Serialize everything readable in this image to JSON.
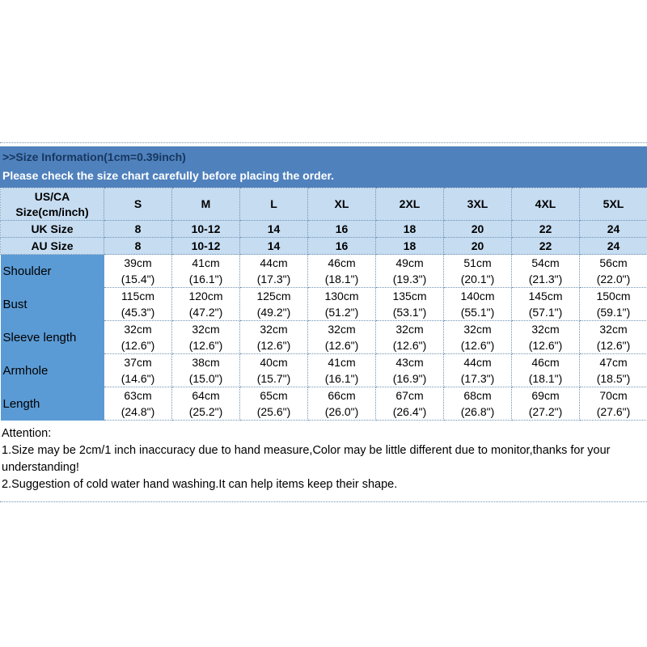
{
  "banner": {
    "title": ">>Size Information(1cm=0.39inch)",
    "subtitle": "Please check the size chart carefully before placing the order."
  },
  "table": {
    "corner": {
      "line1": "US/CA",
      "line2": "Size(cm/inch)"
    },
    "sizes": [
      "S",
      "M",
      "L",
      "XL",
      "2XL",
      "3XL",
      "4XL",
      "5XL"
    ],
    "size_rows": [
      {
        "label": "UK Size",
        "values": [
          "8",
          "10-12",
          "14",
          "16",
          "18",
          "20",
          "22",
          "24"
        ]
      },
      {
        "label": "AU Size",
        "values": [
          "8",
          "10-12",
          "14",
          "16",
          "18",
          "20",
          "22",
          "24"
        ]
      }
    ],
    "measurement_rows": [
      {
        "label": "Shoulder",
        "values": [
          {
            "cm": "39cm",
            "inch": "(15.4\")"
          },
          {
            "cm": "41cm",
            "inch": "(16.1\")"
          },
          {
            "cm": "44cm",
            "inch": "(17.3\")"
          },
          {
            "cm": "46cm",
            "inch": "(18.1\")"
          },
          {
            "cm": "49cm",
            "inch": "(19.3\")"
          },
          {
            "cm": "51cm",
            "inch": "(20.1\")"
          },
          {
            "cm": "54cm",
            "inch": "(21.3\")"
          },
          {
            "cm": "56cm",
            "inch": "(22.0\")"
          }
        ]
      },
      {
        "label": "Bust",
        "values": [
          {
            "cm": "115cm",
            "inch": "(45.3\")"
          },
          {
            "cm": "120cm",
            "inch": "(47.2\")"
          },
          {
            "cm": "125cm",
            "inch": "(49.2\")"
          },
          {
            "cm": "130cm",
            "inch": "(51.2\")"
          },
          {
            "cm": "135cm",
            "inch": "(53.1\")"
          },
          {
            "cm": "140cm",
            "inch": "(55.1\")"
          },
          {
            "cm": "145cm",
            "inch": "(57.1\")"
          },
          {
            "cm": "150cm",
            "inch": "(59.1\")"
          }
        ]
      },
      {
        "label": "Sleeve length",
        "values": [
          {
            "cm": "32cm",
            "inch": "(12.6\")"
          },
          {
            "cm": "32cm",
            "inch": "(12.6\")"
          },
          {
            "cm": "32cm",
            "inch": "(12.6\")"
          },
          {
            "cm": "32cm",
            "inch": "(12.6\")"
          },
          {
            "cm": "32cm",
            "inch": "(12.6\")"
          },
          {
            "cm": "32cm",
            "inch": "(12.6\")"
          },
          {
            "cm": "32cm",
            "inch": "(12.6\")"
          },
          {
            "cm": "32cm",
            "inch": "(12.6\")"
          }
        ]
      },
      {
        "label": "Armhole",
        "values": [
          {
            "cm": "37cm",
            "inch": "(14.6\")"
          },
          {
            "cm": "38cm",
            "inch": "(15.0\")"
          },
          {
            "cm": "40cm",
            "inch": "(15.7\")"
          },
          {
            "cm": "41cm",
            "inch": "(16.1\")"
          },
          {
            "cm": "43cm",
            "inch": "(16.9\")"
          },
          {
            "cm": "44cm",
            "inch": "(17.3\")"
          },
          {
            "cm": "46cm",
            "inch": "(18.1\")"
          },
          {
            "cm": "47cm",
            "inch": "(18.5\")"
          }
        ]
      },
      {
        "label": "Length",
        "values": [
          {
            "cm": "63cm",
            "inch": "(24.8\")"
          },
          {
            "cm": "64cm",
            "inch": "(25.2\")"
          },
          {
            "cm": "65cm",
            "inch": "(25.6\")"
          },
          {
            "cm": "66cm",
            "inch": "(26.0\")"
          },
          {
            "cm": "67cm",
            "inch": "(26.4\")"
          },
          {
            "cm": "68cm",
            "inch": "(26.8\")"
          },
          {
            "cm": "69cm",
            "inch": "(27.2\")"
          },
          {
            "cm": "70cm",
            "inch": "(27.6\")"
          }
        ]
      }
    ]
  },
  "attention": {
    "title": "Attention:",
    "lines": [
      "1.Size may be 2cm/1 inch inaccuracy due to hand measure,Color may be little different due to monitor,thanks for your understanding!",
      "2.Suggestion of cold water hand washing.It can help items keep their shape."
    ]
  },
  "colors": {
    "banner_blue": "#4f81bd",
    "banner_title_navy": "#17375e",
    "header_light_blue": "#c6dcf1",
    "label_medium_blue": "#5b9bd5",
    "dotted_border": "#6f93b3",
    "text_black": "#000000"
  }
}
